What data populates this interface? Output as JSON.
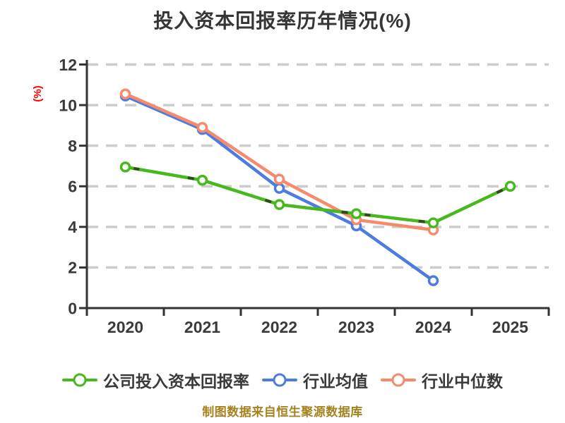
{
  "title": {
    "text": "投入资本回报率历年情况(%)",
    "color": "#363636"
  },
  "y_axis_unit": {
    "text": "(%)",
    "color": "#ff0000"
  },
  "footer": {
    "text": "制图数据来自恒生聚源数据库",
    "color": "#a6821e"
  },
  "style": {
    "background": "#ffffff",
    "axis_color": "#333333",
    "tick_label_color": "#3a3a3a",
    "grid_color": "#cccccc",
    "marker_fill": "#ffffff",
    "legend_text_color": "#3a3a3a"
  },
  "chart_data": {
    "type": "line",
    "title": "投入资本回报率历年情况(%)",
    "categories": [
      "2020",
      "2021",
      "2022",
      "2023",
      "2024",
      "2025"
    ],
    "xlabel": "",
    "ylabel": "(%)",
    "ylim": [
      0,
      12
    ],
    "yticks": [
      0,
      2,
      4,
      6,
      8,
      10,
      12
    ],
    "grid": true,
    "grid_style": "dashed",
    "legend_position": "bottom",
    "series": [
      {
        "name": "公司投入资本回报率",
        "color": "#47b81e",
        "values": [
          6.95,
          6.3,
          5.1,
          4.65,
          4.2,
          6.0
        ]
      },
      {
        "name": "行业均值",
        "color": "#4d7ce0",
        "values": [
          10.45,
          8.8,
          5.9,
          4.05,
          1.35,
          null
        ]
      },
      {
        "name": "行业中位数",
        "color": "#f58a6c",
        "values": [
          10.55,
          8.9,
          6.35,
          4.35,
          3.85,
          null
        ]
      }
    ]
  }
}
